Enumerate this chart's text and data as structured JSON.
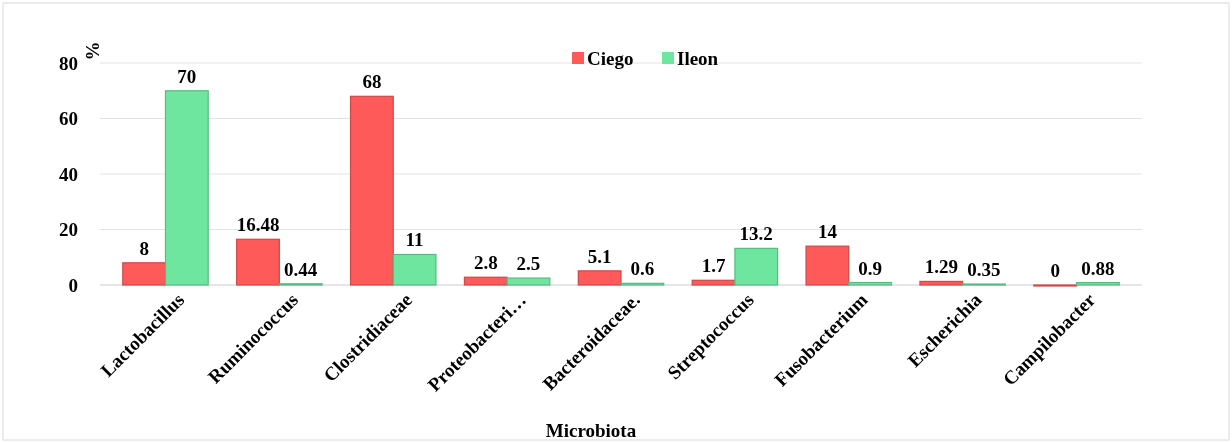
{
  "chart_data": {
    "type": "bar",
    "ylabel": "%",
    "xlabel": "Microbiota",
    "categories": [
      "Lactobacillus",
      "Ruminococcus",
      "Clostridiaceae",
      "Proteobacteri…",
      "Bacteroidaceae.",
      "Streptococcus",
      "Fusobacterium",
      "Escherichia",
      "Campilobacter"
    ],
    "series": [
      {
        "name": "Ciego",
        "color": "#ff5a5a",
        "values": [
          8,
          16.48,
          68,
          2.8,
          5.1,
          1.7,
          14,
          1.29,
          0
        ]
      },
      {
        "name": "Ileon",
        "color": "#6ee6a0",
        "values": [
          70,
          0.44,
          11,
          2.5,
          0.6,
          13.2,
          0.9,
          0.35,
          0.88
        ]
      }
    ],
    "ylim": [
      0,
      80
    ],
    "yticks": [
      0,
      20,
      40,
      60,
      80
    ],
    "grid": "y",
    "legend": "top",
    "data_labels": true
  }
}
